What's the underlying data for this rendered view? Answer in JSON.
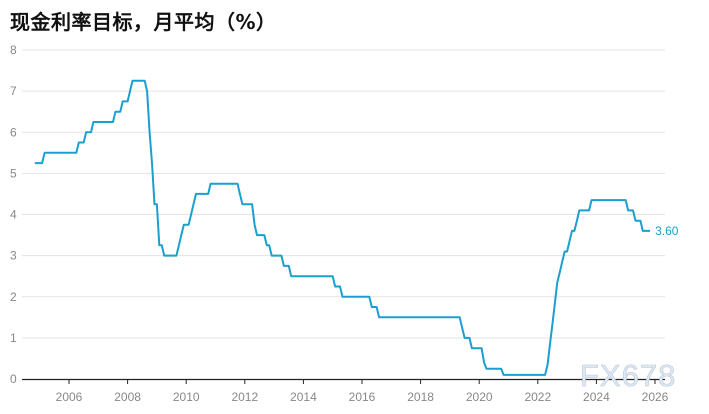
{
  "chart_data": {
    "type": "line",
    "title": "现金利率目标，月平均（%）",
    "xlabel": "",
    "ylabel": "",
    "ylim": [
      0,
      8
    ],
    "xlim": [
      "2004-10",
      "2026-06"
    ],
    "y_ticks": [
      "0",
      "1",
      "2",
      "3",
      "4",
      "5",
      "6",
      "7",
      "8"
    ],
    "x_ticks": [
      "2006",
      "2008",
      "2010",
      "2012",
      "2014",
      "2016",
      "2018",
      "2020",
      "2022",
      "2024",
      "2026"
    ],
    "grid": true,
    "line_color": "#1a9fcf",
    "end_label": "3.60",
    "series": [
      {
        "steps": [
          [
            "2004-11",
            5.25
          ],
          [
            "2005-03",
            5.5
          ],
          [
            "2006-05",
            5.75
          ],
          [
            "2006-08",
            6.0
          ],
          [
            "2006-11",
            6.25
          ],
          [
            "2007-08",
            6.5
          ],
          [
            "2007-11",
            6.75
          ],
          [
            "2008-02",
            7.0
          ],
          [
            "2008-03",
            7.25
          ],
          [
            "2008-09",
            7.0
          ],
          [
            "2008-10",
            6.0
          ],
          [
            "2008-11",
            5.25
          ],
          [
            "2008-12",
            4.25
          ],
          [
            "2009-02",
            3.25
          ],
          [
            "2009-04",
            3.0
          ],
          [
            "2009-10",
            3.25
          ],
          [
            "2009-11",
            3.5
          ],
          [
            "2009-12",
            3.75
          ],
          [
            "2010-03",
            4.0
          ],
          [
            "2010-04",
            4.25
          ],
          [
            "2010-05",
            4.5
          ],
          [
            "2010-11",
            4.75
          ],
          [
            "2011-11",
            4.5
          ],
          [
            "2011-12",
            4.25
          ],
          [
            "2012-05",
            3.75
          ],
          [
            "2012-06",
            3.5
          ],
          [
            "2012-10",
            3.25
          ],
          [
            "2012-12",
            3.0
          ],
          [
            "2013-05",
            2.75
          ],
          [
            "2013-08",
            2.5
          ],
          [
            "2015-02",
            2.25
          ],
          [
            "2015-05",
            2.0
          ],
          [
            "2016-05",
            1.75
          ],
          [
            "2016-08",
            1.5
          ],
          [
            "2019-06",
            1.25
          ],
          [
            "2019-07",
            1.0
          ],
          [
            "2019-10",
            0.75
          ],
          [
            "2020-03",
            0.4
          ],
          [
            "2020-04",
            0.25
          ],
          [
            "2020-11",
            0.1
          ],
          [
            "2022-05",
            0.35
          ],
          [
            "2022-06",
            0.85
          ],
          [
            "2022-07",
            1.35
          ],
          [
            "2022-08",
            1.85
          ],
          [
            "2022-09",
            2.35
          ],
          [
            "2022-10",
            2.6
          ],
          [
            "2022-11",
            2.85
          ],
          [
            "2022-12",
            3.1
          ],
          [
            "2023-02",
            3.35
          ],
          [
            "2023-03",
            3.6
          ],
          [
            "2023-05",
            3.85
          ],
          [
            "2023-06",
            4.1
          ],
          [
            "2023-11",
            4.35
          ],
          [
            "2025-02",
            4.1
          ],
          [
            "2025-05",
            3.85
          ],
          [
            "2025-08",
            3.6
          ],
          [
            "2025-11",
            3.6
          ]
        ]
      }
    ]
  },
  "watermark": "FX678"
}
